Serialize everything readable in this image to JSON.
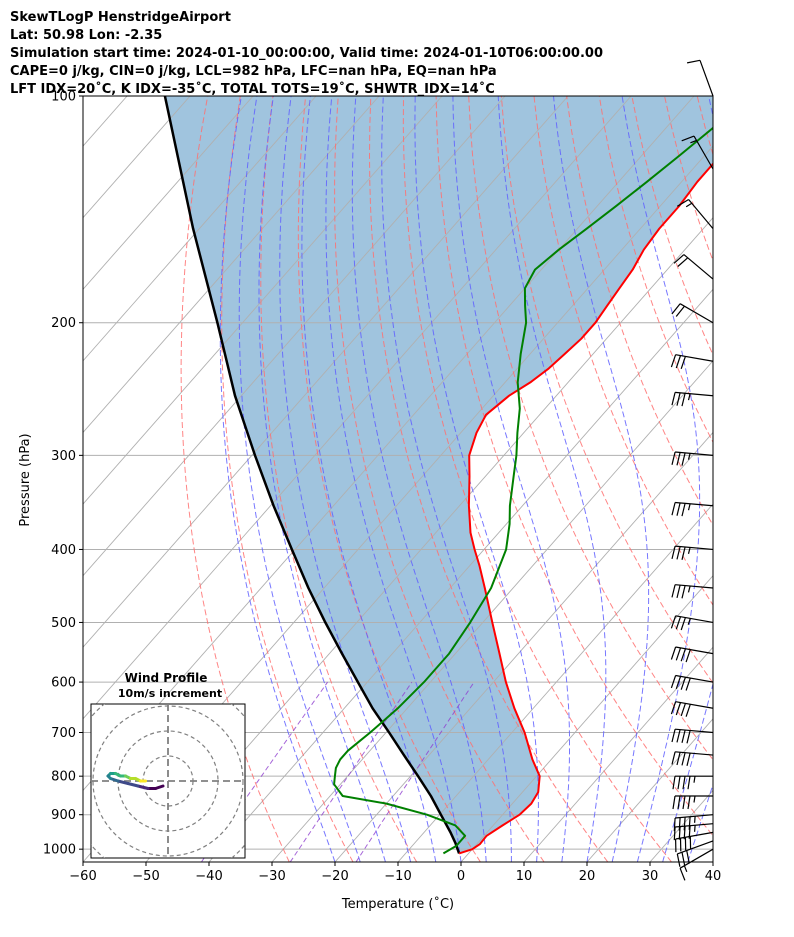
{
  "header": {
    "lines": [
      "SkewTLogP HenstridgeAirport",
      "Lat: 50.98   Lon: -2.35",
      "Simulation start time: 2024-01-10_00:00:00, Valid time: 2024-01-10T06:00:00.00",
      "CAPE=0 j/kg, CIN=0 j/kg, LCL=982 hPa, LFC=nan hPa, EQ=nan hPa",
      "LFT IDX=20˚C, K IDX=-35˚C, TOTAL TOTS=19˚C, SHWTR_IDX=14˚C"
    ]
  },
  "chart_data": {
    "type": "line",
    "subtype": "skew-T log-P diagram",
    "xlabel": "Temperature (˚C)",
    "ylabel": "Pressure (hPa)",
    "xlim": [
      -60,
      40
    ],
    "ylim": [
      1040,
      100
    ],
    "y_scale": "log",
    "grid": true,
    "x_ticks": [
      -60,
      -50,
      -40,
      -30,
      -20,
      -10,
      0,
      10,
      20,
      30,
      40
    ],
    "x_tick_labels": [
      "−60",
      "−50",
      "−40",
      "−30",
      "−20",
      "−10",
      "0",
      "10",
      "20",
      "30",
      "40"
    ],
    "y_ticks": [
      100,
      200,
      300,
      400,
      500,
      600,
      700,
      800,
      900,
      1000
    ],
    "y_tick_labels": [
      "100",
      "200",
      "300",
      "400",
      "500",
      "600",
      "700",
      "800",
      "900",
      "1000"
    ],
    "colors": {
      "temperature": "#ff0000",
      "dewpoint": "#008000",
      "parcel": "#000000",
      "fill": "#a0c4de",
      "dry_adiabats": "#ff7070",
      "moist_adiabats": "#6060ff",
      "mixing_ratio": "#9040d0",
      "isotherms": "#b0b0b0"
    },
    "series": [
      {
        "key": "temperature",
        "p": [
          1013,
          1000,
          985,
          960,
          930,
          900,
          870,
          840,
          800,
          760,
          700,
          650,
          600,
          550,
          500,
          450,
          420,
          400,
          380,
          350,
          320,
          300,
          280,
          265,
          250,
          240,
          230,
          220,
          210,
          200,
          190,
          180,
          170,
          160,
          150,
          140,
          130,
          120,
          110,
          105,
          100
        ],
        "t": [
          -1.5,
          0,
          0.5,
          0.4,
          1.5,
          2.7,
          3.0,
          2.5,
          0.5,
          -3,
          -8,
          -13,
          -18,
          -23,
          -28.5,
          -34.5,
          -38.5,
          -41.5,
          -44.5,
          -48.5,
          -52.5,
          -55.5,
          -57.5,
          -58.5,
          -57.5,
          -56,
          -55,
          -54.5,
          -54,
          -54,
          -54.5,
          -55,
          -55.5,
          -56.5,
          -57,
          -57,
          -57.5,
          -57.5,
          -58.5,
          -58,
          -57
        ]
      },
      {
        "key": "dewpoint",
        "p": [
          1013,
          990,
          960,
          930,
          900,
          870,
          850,
          820,
          800,
          780,
          760,
          740,
          720,
          700,
          650,
          600,
          550,
          500,
          450,
          400,
          370,
          350,
          320,
          300,
          280,
          260,
          240,
          220,
          200,
          190,
          180,
          170,
          160,
          150,
          140,
          130,
          120,
          110,
          100
        ],
        "t": [
          -4,
          -3,
          -3,
          -6,
          -12,
          -20,
          -28,
          -31,
          -32,
          -33,
          -33.5,
          -33.5,
          -33,
          -32.5,
          -31.5,
          -31,
          -31,
          -32,
          -33.5,
          -36.5,
          -39.5,
          -42,
          -45.5,
          -48,
          -51,
          -54,
          -58,
          -61.5,
          -65,
          -67.5,
          -70,
          -71,
          -70,
          -68.5,
          -67,
          -65.5,
          -64,
          -62.5,
          -61
        ]
      },
      {
        "key": "parcel",
        "p": [
          1013,
          982,
          950,
          900,
          850,
          800,
          750,
          700,
          650,
          600,
          550,
          500,
          450,
          400,
          350,
          300,
          250,
          200,
          150,
          100
        ],
        "t": [
          -1.5,
          -3.5,
          -5.8,
          -9.8,
          -14.0,
          -18.8,
          -24.0,
          -29.5,
          -35.5,
          -41.5,
          -48.0,
          -55.0,
          -62.5,
          -70.5,
          -79.5,
          -89.5,
          -101,
          -114,
          -131,
          -154
        ]
      }
    ],
    "wind_barbs": {
      "p": [
        1000,
        975,
        950,
        925,
        900,
        850,
        800,
        750,
        700,
        650,
        600,
        550,
        500,
        450,
        400,
        350,
        300,
        250,
        225,
        200,
        175,
        150,
        125,
        100
      ],
      "speed_kt": [
        15,
        30,
        40,
        45,
        45,
        45,
        45,
        40,
        40,
        40,
        40,
        40,
        35,
        35,
        35,
        35,
        35,
        35,
        30,
        20,
        20,
        15,
        15,
        10
      ],
      "direction_deg": [
        240,
        250,
        260,
        265,
        265,
        270,
        270,
        275,
        275,
        280,
        280,
        280,
        280,
        275,
        275,
        275,
        275,
        275,
        280,
        300,
        310,
        320,
        330,
        340
      ]
    },
    "inset": {
      "title_lines": [
        "Wind Profile",
        "10m/s increment"
      ],
      "type": "hodograph",
      "ring_step_ms": 10,
      "u_ms": [
        -2,
        -5,
        -8,
        -12,
        -16,
        -20,
        -23,
        -24,
        -23,
        -21,
        -19,
        -17,
        -15,
        -13,
        -11,
        -9
      ],
      "v_ms": [
        -2,
        -3,
        -3,
        -2,
        -1,
        0,
        1,
        2,
        3,
        3,
        2,
        2,
        1,
        1,
        0,
        0
      ]
    }
  }
}
